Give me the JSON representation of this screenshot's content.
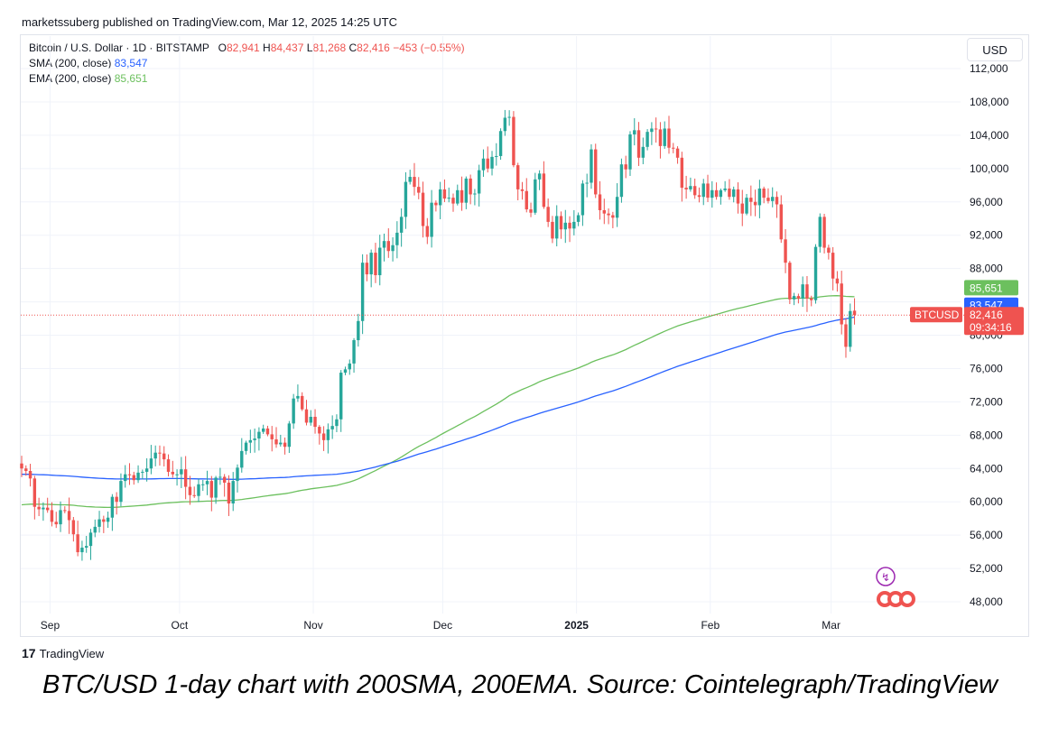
{
  "header": {
    "published": "marketssuberg published on TradingView.com, Mar 12, 2025 14:25 UTC"
  },
  "legend": {
    "symbol": "Bitcoin / U.S. Dollar · 1D · BITSTAMP",
    "o_label": "O",
    "o": "82,941",
    "h_label": "H",
    "h": "84,437",
    "l_label": "L",
    "l": "81,268",
    "c_label": "C",
    "c": "82,416",
    "change": "−453 (−0.55%)",
    "sma_label": "SMA (200, close)",
    "sma_value": "83,547",
    "ema_label": "EMA (200, close)",
    "ema_value": "85,651"
  },
  "price_axis": {
    "currency": "USD"
  },
  "badges": {
    "ema": "85,651",
    "sma": "83,547",
    "symbol": "BTCUSD",
    "price": "82,416",
    "countdown": "09:34:16"
  },
  "footer": {
    "brand": "TradingView"
  },
  "caption": "BTC/USD 1-day chart with 200SMA, 200EMA. Source: Cointelegraph/TradingView",
  "colors": {
    "up": "#26a69a",
    "down": "#ef5350",
    "sma": "#2962ff",
    "ema": "#6cc05e",
    "grid": "#f0f3fa"
  },
  "chart_data": {
    "type": "candlestick",
    "ylim": [
      44000,
      114000
    ],
    "y_ticks": [
      "112,000",
      "108,000",
      "104,000",
      "100,000",
      "96,000",
      "92,000",
      "88,000",
      "84,000",
      "80,000",
      "76,000",
      "72,000",
      "68,000",
      "64,000",
      "60,000",
      "56,000",
      "52,000",
      "48,000"
    ],
    "x_ticks": [
      {
        "label": "Sep",
        "date": "2024-09-01"
      },
      {
        "label": "Oct",
        "date": "2024-10-01"
      },
      {
        "label": "Nov",
        "date": "2024-11-01"
      },
      {
        "label": "Dec",
        "date": "2024-12-01"
      },
      {
        "label": "2025",
        "date": "2025-01-01",
        "bold": true
      },
      {
        "label": "Feb",
        "date": "2025-02-01"
      },
      {
        "label": "Mar",
        "date": "2025-03-01"
      }
    ],
    "start_date": "2024-08-25",
    "end_date": "2025-03-12",
    "close": [
      64000,
      63700,
      62800,
      59400,
      59100,
      59300,
      59000,
      57600,
      57300,
      59000,
      58900,
      57800,
      56100,
      53950,
      54500,
      54700,
      56300,
      57000,
      57900,
      57600,
      58100,
      60600,
      60000,
      62500,
      63300,
      63200,
      62600,
      63500,
      63600,
      64000,
      65200,
      65900,
      65800,
      65100,
      63600,
      63300,
      63300,
      63900,
      61800,
      60800,
      60700,
      62100,
      62100,
      62500,
      60500,
      62900,
      63000,
      62300,
      59800,
      62500,
      64100,
      66100,
      67100,
      67400,
      67600,
      68400,
      68800,
      68100,
      67500,
      66900,
      67100,
      66600,
      69400,
      72400,
      72700,
      71100,
      69500,
      70200,
      69000,
      68200,
      67400,
      68700,
      69100,
      69900,
      75500,
      75900,
      76600,
      79400,
      81700,
      88700,
      87300,
      89900,
      87200,
      90500,
      91300,
      90100,
      90800,
      92300,
      94200,
      98400,
      99000,
      97800,
      97100,
      93100,
      91800,
      95900,
      95600,
      97500,
      96400,
      96500,
      95800,
      97400,
      95900,
      98800,
      96900,
      97000,
      99800,
      101200,
      100000,
      101400,
      101500,
      104500,
      106100,
      106200,
      100400,
      97500,
      97300,
      95100,
      94700,
      98700,
      99400,
      95400,
      93600,
      91600,
      94300,
      92700,
      93500,
      92800,
      93600,
      94400,
      98200,
      98300,
      102300,
      96900,
      95000,
      94600,
      94400,
      94100,
      96600,
      100500,
      99900,
      104100,
      104600,
      101300,
      102600,
      104400,
      104800,
      104700,
      102700,
      104800,
      102500,
      102400,
      101300,
      97700,
      97500,
      97900,
      96800,
      96600,
      98200,
      96500,
      97400,
      96600,
      97400,
      97600,
      96600,
      97500,
      95800,
      94600,
      96500,
      96000,
      95600,
      97600,
      96500,
      96100,
      96600,
      95700,
      91500,
      88700,
      84300,
      84700,
      84400,
      86100,
      84400,
      84200,
      90600,
      94200,
      90500,
      89900,
      86800,
      86200,
      81300,
      78600,
      82900,
      82416
    ]
  }
}
